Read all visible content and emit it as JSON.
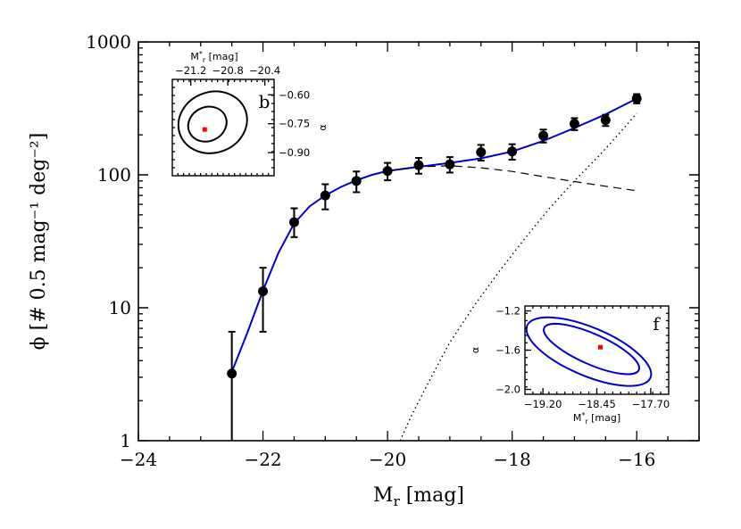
{
  "chart_data": {
    "type": "scatter",
    "xlabel_main": "M",
    "xlabel_sub": "r",
    "xlabel_unit": "[mag]",
    "ylabel": "ϕ [# 0.5 mag⁻¹ deg⁻²]",
    "xlim": [
      -24,
      -15
    ],
    "ylim": [
      1,
      1000
    ],
    "yscale": "log",
    "x_ticks": [
      "-24",
      "-22",
      "-20",
      "-18",
      "-16"
    ],
    "y_ticks": [
      "1",
      "10",
      "100",
      "1000"
    ],
    "series": [
      {
        "kind": "points-with-errorbars",
        "color": "#000000",
        "x": [
          -22.5,
          -22.0,
          -21.5,
          -21.0,
          -20.5,
          -20.0,
          -19.5,
          -19.0,
          -18.5,
          -18.0,
          -17.5,
          -17.0,
          -16.5,
          -16.0
        ],
        "y": [
          3.2,
          13.3,
          44,
          70,
          90,
          107,
          118,
          120,
          148,
          150,
          197,
          242,
          258,
          375
        ],
        "y_low": [
          1.0,
          6.6,
          34,
          55,
          74,
          91,
          102,
          104,
          128,
          130,
          175,
          217,
          233,
          345
        ],
        "y_high": [
          6.6,
          20,
          56,
          85,
          106,
          123,
          134,
          136,
          168,
          170,
          219,
          267,
          283,
          405
        ]
      },
      {
        "kind": "line",
        "style": "solid",
        "color": "#0000cc",
        "x": [
          -22.5,
          -22.25,
          -22.0,
          -21.75,
          -21.5,
          -21.25,
          -21.0,
          -20.75,
          -20.5,
          -20.25,
          -20.0,
          -19.5,
          -19.0,
          -18.5,
          -18.0,
          -17.5,
          -17.0,
          -16.5,
          -16.0
        ],
        "y": [
          3.3,
          6.5,
          13.5,
          26,
          43,
          58,
          70,
          81,
          91,
          100,
          107,
          115,
          123,
          133,
          150,
          180,
          225,
          285,
          375
        ]
      },
      {
        "kind": "line",
        "style": "dashed",
        "color": "#000000",
        "x": [
          -20.0,
          -19.5,
          -19.0,
          -18.5,
          -18.0,
          -17.5,
          -17.0,
          -16.5,
          -16.0
        ],
        "y": [
          107,
          115,
          117,
          113,
          106,
          97,
          89,
          82,
          76
        ]
      },
      {
        "kind": "line",
        "style": "dotted",
        "color": "#000000",
        "x": [
          -19.8,
          -19.6,
          -19.3,
          -19.0,
          -18.6,
          -18.2,
          -17.8,
          -17.4,
          -17.0,
          -16.6,
          -16.3,
          -16.0
        ],
        "y": [
          1,
          1.6,
          3.0,
          5.5,
          10.5,
          19,
          33,
          56,
          90,
          140,
          200,
          290
        ]
      }
    ],
    "insets": [
      {
        "panel_label": "b",
        "xlabel_main": "M",
        "xlabel_sup": "*",
        "xlabel_sub": "r",
        "xlabel_unit": "[mag]",
        "ylabel": "α",
        "x_ticks": [
          "-21.2",
          "-20.8",
          "-20.4"
        ],
        "y_ticks": [
          "-0.60",
          "-0.75",
          "-0.90"
        ],
        "xlim": [
          -21.4,
          -20.3
        ],
        "ylim": [
          -1.02,
          -0.52
        ],
        "contour_color": "#000000",
        "best_fit": {
          "x": -21.05,
          "y": -0.78,
          "color": "#ff0000"
        }
      },
      {
        "panel_label": "f",
        "xlabel_main": "M",
        "xlabel_sup": "*",
        "xlabel_sub": "r",
        "xlabel_unit": "[mag]",
        "ylabel": "α",
        "x_ticks": [
          "-19.20",
          "-18.45",
          "-17.70"
        ],
        "y_ticks": [
          "-1.2",
          "-1.6",
          "-2.0"
        ],
        "xlim": [
          -19.45,
          -17.45
        ],
        "ylim": [
          -2.05,
          -1.15
        ],
        "contour_color": "#0000cc",
        "best_fit": {
          "x": -18.4,
          "y": -1.57,
          "color": "#ff0000"
        }
      }
    ]
  }
}
